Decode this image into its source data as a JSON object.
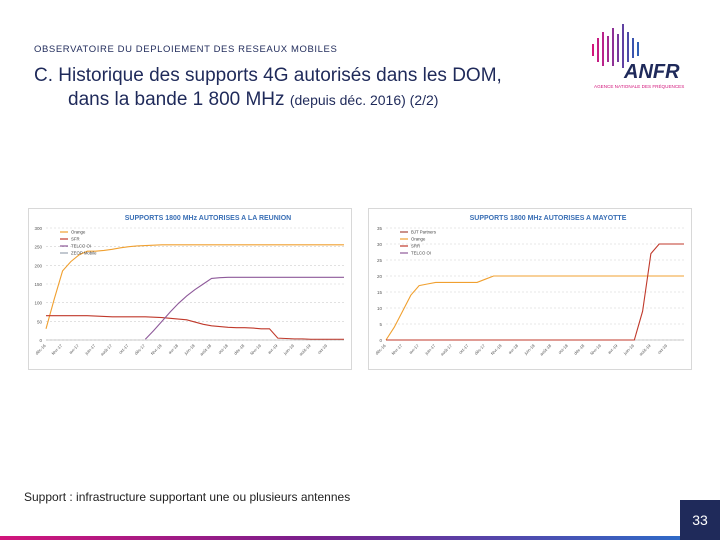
{
  "header": {
    "overline": "OBSERVATOIRE DU DEPLOIEMENT DES RESEAUX MOBILES",
    "title_line1": "C. Historique des supports 4G autorisés dans les DOM,",
    "title_line2_main": "dans la bande 1 800 MHz",
    "title_line2_sub": "(depuis déc. 2016) (2/2)"
  },
  "logo": {
    "text": "ANFR",
    "tagline": "AGENCE NATIONALE DES FRÉQUENCES",
    "color": "#1f2a5a",
    "accent": "#d2157b"
  },
  "footnote": "Support : infrastructure supportant une ou plusieurs antennes",
  "page_number": "33",
  "chart_data": [
    {
      "type": "line",
      "title": "SUPPORTS 1800 MHz AUTORISES A LA REUNION",
      "x": [
        "Déc-16",
        "Jan-17",
        "Fév-17",
        "Mar-17",
        "Avr-17",
        "Mai-17",
        "Juin-17",
        "Juil-17",
        "Août-17",
        "Sept-17",
        "Oct-17",
        "Nov-17",
        "Déc-17",
        "Jan-18",
        "Fév-18",
        "Mar-18",
        "Avr-18",
        "Mai-18",
        "Juin-18",
        "Juil-18",
        "Août-18",
        "Sept-18",
        "Oct-18",
        "Nov-18",
        "Déc-18",
        "Jan-19",
        "Fév-19",
        "Mar-19",
        "Avr-19",
        "Mai-19",
        "Juin-19",
        "Juil-19",
        "Août-19",
        "Sept-19",
        "Oct-19",
        "Nov-19",
        "Déc-19"
      ],
      "xtick_labels": [
        "déc-16",
        "févr-17",
        "avr-17",
        "juin-17",
        "août-17",
        "oct-17",
        "déc-17",
        "févr-18",
        "avr-18",
        "juin-18",
        "août-18",
        "oct-18",
        "déc-18",
        "févr-19",
        "avr-19",
        "juin-19",
        "août-19",
        "oct-19"
      ],
      "ylim": [
        0,
        300
      ],
      "yticks": [
        0,
        50,
        100,
        150,
        200,
        250,
        300
      ],
      "legend_position": "top-left",
      "series": [
        {
          "name": "Orange",
          "color": "#f0a030",
          "values": [
            30,
            110,
            185,
            210,
            228,
            238,
            238,
            240,
            243,
            247,
            250,
            252,
            253,
            254,
            255,
            255,
            255,
            255,
            255,
            255,
            255,
            255,
            255,
            255,
            255,
            255,
            255,
            255,
            255,
            255,
            255,
            255,
            255,
            255,
            255,
            255,
            255
          ]
        },
        {
          "name": "SFR",
          "color": "#c0392b",
          "values": [
            65,
            65,
            65,
            65,
            65,
            65,
            64,
            63,
            62,
            62,
            62,
            62,
            62,
            61,
            60,
            58,
            56,
            54,
            48,
            42,
            38,
            36,
            34,
            33,
            33,
            32,
            30,
            30,
            5,
            4,
            3,
            3,
            2,
            2,
            2,
            2,
            2
          ]
        },
        {
          "name": "TELCO OI",
          "color": "#8e5a9a",
          "values": [
            null,
            null,
            null,
            null,
            null,
            null,
            null,
            null,
            null,
            null,
            null,
            null,
            2,
            25,
            50,
            75,
            98,
            118,
            135,
            150,
            165,
            167,
            168,
            168,
            168,
            168,
            168,
            168,
            168,
            168,
            168,
            168,
            168,
            168,
            168,
            168,
            168
          ]
        },
        {
          "name": "ZEOP Mobile",
          "color": "#9aa3b0",
          "values": [
            null,
            null,
            null,
            null,
            null,
            null,
            null,
            null,
            null,
            null,
            null,
            null,
            null,
            null,
            null,
            null,
            null,
            null,
            null,
            null,
            null,
            null,
            null,
            null,
            null,
            null,
            null,
            null,
            null,
            null,
            null,
            null,
            null,
            null,
            null,
            null,
            null
          ]
        }
      ]
    },
    {
      "type": "line",
      "title": "SUPPORTS 1800 MHz AUTORISES A MAYOTTE",
      "x": [
        "Déc-16",
        "Jan-17",
        "Fév-17",
        "Mar-17",
        "Avr-17",
        "Mai-17",
        "Juin-17",
        "Juil-17",
        "Août-17",
        "Sept-17",
        "Oct-17",
        "Nov-17",
        "Déc-17",
        "Jan-18",
        "Fév-18",
        "Mar-18",
        "Avr-18",
        "Mai-18",
        "Juin-18",
        "Juil-18",
        "Août-18",
        "Sept-18",
        "Oct-18",
        "Nov-18",
        "Déc-18",
        "Jan-19",
        "Fév-19",
        "Mar-19",
        "Avr-19",
        "Mai-19",
        "Juin-19",
        "Juil-19",
        "Août-19",
        "Sept-19",
        "Oct-19",
        "Nov-19",
        "Déc-19"
      ],
      "xtick_labels": [
        "déc-16",
        "févr-17",
        "avr-17",
        "juin-17",
        "août-17",
        "oct-17",
        "déc-17",
        "févr-18",
        "avr-18",
        "juin-18",
        "août-18",
        "oct-18",
        "déc-18",
        "févr-19",
        "avr-19",
        "juin-19",
        "août-19",
        "oct-19"
      ],
      "ylim": [
        0,
        35
      ],
      "yticks": [
        0,
        5,
        10,
        15,
        20,
        25,
        30,
        35
      ],
      "legend_position": "top-left",
      "series": [
        {
          "name": "BJT Partners",
          "color": "#a8473a",
          "values": [
            null,
            null,
            null,
            null,
            null,
            null,
            null,
            null,
            null,
            null,
            null,
            null,
            null,
            null,
            null,
            null,
            null,
            null,
            null,
            null,
            null,
            null,
            null,
            null,
            null,
            null,
            null,
            null,
            null,
            null,
            null,
            null,
            null,
            null,
            null,
            null,
            null
          ]
        },
        {
          "name": "Orange",
          "color": "#f0a030",
          "values": [
            0,
            4,
            9,
            14,
            17,
            17.5,
            18,
            18,
            18,
            18,
            18,
            18,
            19,
            20,
            20,
            20,
            20,
            20,
            20,
            20,
            20,
            20,
            20,
            20,
            20,
            20,
            20,
            20,
            20,
            20,
            20,
            20,
            20,
            20,
            20,
            20,
            20
          ]
        },
        {
          "name": "SRR",
          "color": "#c0392b",
          "values": [
            0,
            0,
            0,
            0,
            0,
            0,
            0,
            0,
            0,
            0,
            0,
            0,
            0,
            0,
            0,
            0,
            0,
            0,
            0,
            0,
            0,
            0,
            0,
            0,
            0,
            0,
            0,
            0,
            0,
            0,
            0,
            9,
            27,
            30,
            30,
            30,
            30
          ]
        },
        {
          "name": "TELCO OI",
          "color": "#8e5a9a",
          "values": [
            null,
            null,
            null,
            null,
            null,
            null,
            null,
            null,
            null,
            null,
            null,
            null,
            null,
            null,
            null,
            null,
            null,
            null,
            null,
            null,
            null,
            null,
            null,
            null,
            null,
            null,
            null,
            null,
            null,
            null,
            null,
            null,
            null,
            null,
            null,
            null,
            null
          ]
        }
      ]
    }
  ]
}
